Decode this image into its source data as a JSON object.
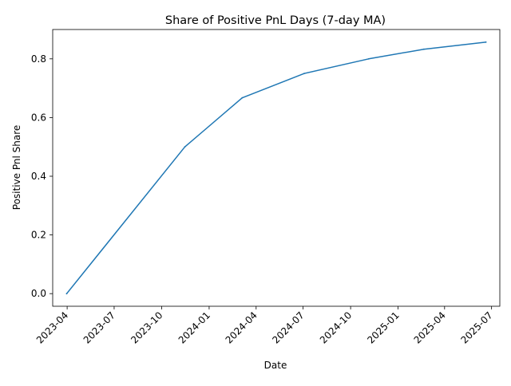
{
  "chart_data": {
    "type": "line",
    "title": "Share of Positive PnL Days (7-day MA)",
    "xlabel": "Date",
    "ylabel": "Positive Pnl Share",
    "x": [
      "2023-03-31",
      "2023-11-15",
      "2024-03-05",
      "2024-07-03",
      "2024-11-05",
      "2025-02-20",
      "2025-06-20"
    ],
    "series": [
      {
        "values": [
          0.0,
          0.5,
          0.667,
          0.75,
          0.8,
          0.833,
          0.857
        ]
      }
    ],
    "xlim": [
      "2023-03-04",
      "2025-07-17"
    ],
    "ylim": [
      -0.043,
      0.9
    ],
    "x_ticks": [
      "2023-04",
      "2023-07",
      "2023-10",
      "2024-01",
      "2024-04",
      "2024-07",
      "2024-10",
      "2025-01",
      "2025-04",
      "2025-07"
    ],
    "y_ticks": [
      "0.0",
      "0.2",
      "0.4",
      "0.6",
      "0.8"
    ],
    "grid": false,
    "line_color": "#1f77b4"
  }
}
